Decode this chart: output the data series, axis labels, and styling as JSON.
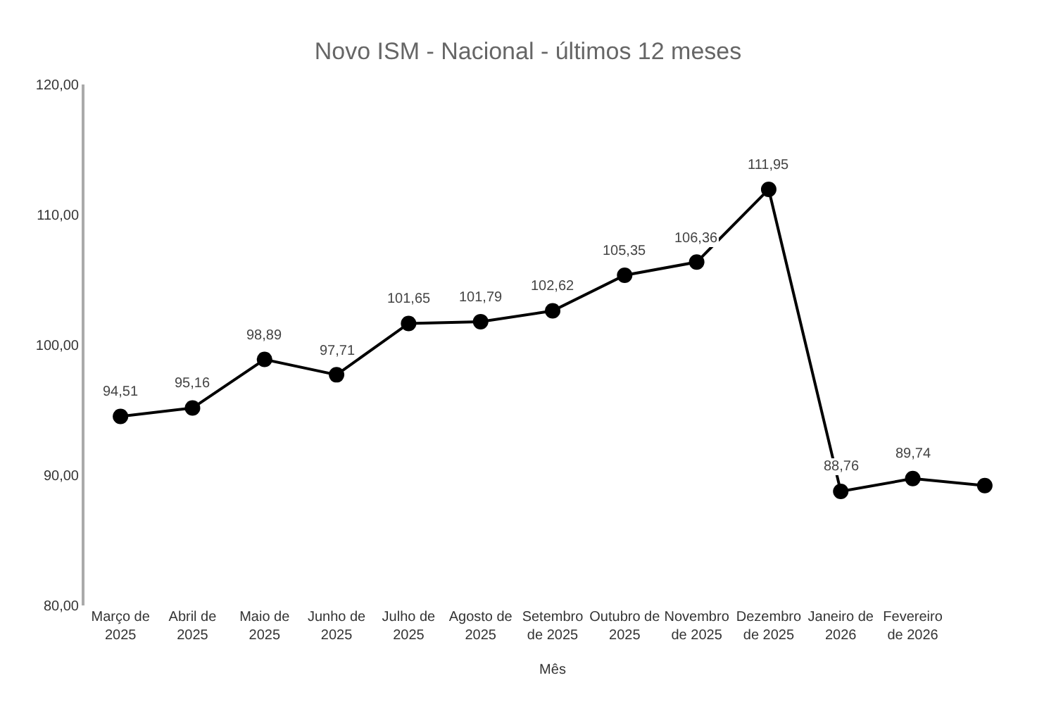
{
  "chart_data": {
    "type": "line",
    "title": "Novo ISM - Nacional - últimos 12 meses",
    "xlabel": "Mês",
    "categories": [
      "Março de\n2025",
      "Abril de\n2025",
      "Maio de\n2025",
      "Junho de\n2025",
      "Julho de\n2025",
      "Agosto de\n2025",
      "Setembro\nde 2025",
      "Outubro de\n2025",
      "Novembro\nde 2025",
      "Dezembro\nde 2025",
      "Janeiro de\n2026",
      "Fevereiro\nde 2026",
      null
    ],
    "series": [
      {
        "color": "#000000",
        "values": [
          94.51,
          95.16,
          98.89,
          97.71,
          101.65,
          101.79,
          102.62,
          105.35,
          106.36,
          111.95,
          88.76,
          89.74,
          89.2
        ],
        "value_labels": [
          "94,51",
          "95,16",
          "98,89",
          "97,71",
          "101,65",
          "101,79",
          "102,62",
          "105,35",
          "106,36",
          "111,95",
          "88,76",
          "89,74",
          null
        ]
      }
    ],
    "ylim": [
      80,
      120
    ],
    "yticks": [
      {
        "value": 80,
        "label": "80,00"
      },
      {
        "value": 90,
        "label": "90,00"
      },
      {
        "value": 100,
        "label": "100,00"
      },
      {
        "value": 110,
        "label": "110,00"
      },
      {
        "value": 120,
        "label": "120,00"
      }
    ],
    "marker": "circle",
    "line_style": "solid"
  }
}
